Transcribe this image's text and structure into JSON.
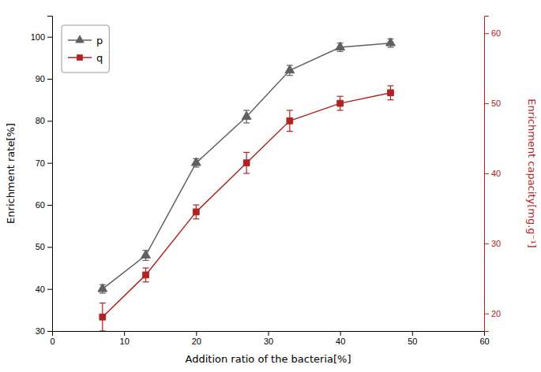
{
  "chart_data": {
    "type": "line",
    "x": [
      7,
      13,
      20,
      27,
      33,
      40,
      47
    ],
    "xlabel": "Addition ratio of the bacteria[%]",
    "ylabel": "Enrichment rate[%]",
    "y2label": "Enrichment capacity[mg.g⁻¹]",
    "xlim": [
      0,
      60
    ],
    "xticks": [
      0,
      10,
      20,
      30,
      40,
      50,
      60
    ],
    "ylim": [
      30,
      105
    ],
    "yticks": [
      30,
      40,
      50,
      60,
      70,
      80,
      90,
      100
    ],
    "y2lim": [
      17.5,
      62.5
    ],
    "y2ticks": [
      20,
      30,
      40,
      50,
      60
    ],
    "legend": "upper left",
    "series": [
      {
        "name": "p",
        "color": "#606060",
        "marker": "triangle",
        "values": [
          40,
          48,
          70,
          81,
          92,
          97.5,
          98.5
        ],
        "errors": [
          1.0,
          1.2,
          1.0,
          1.5,
          1.2,
          1.0,
          1.0
        ]
      },
      {
        "name": "q",
        "color": "#b22222",
        "marker": "square",
        "axis": "y2",
        "values": [
          19.5,
          25.5,
          34.5,
          41.5,
          47.5,
          50.0,
          51.5
        ],
        "errors": [
          2.0,
          1.0,
          1.0,
          1.5,
          1.5,
          1.0,
          1.0
        ]
      }
    ]
  }
}
